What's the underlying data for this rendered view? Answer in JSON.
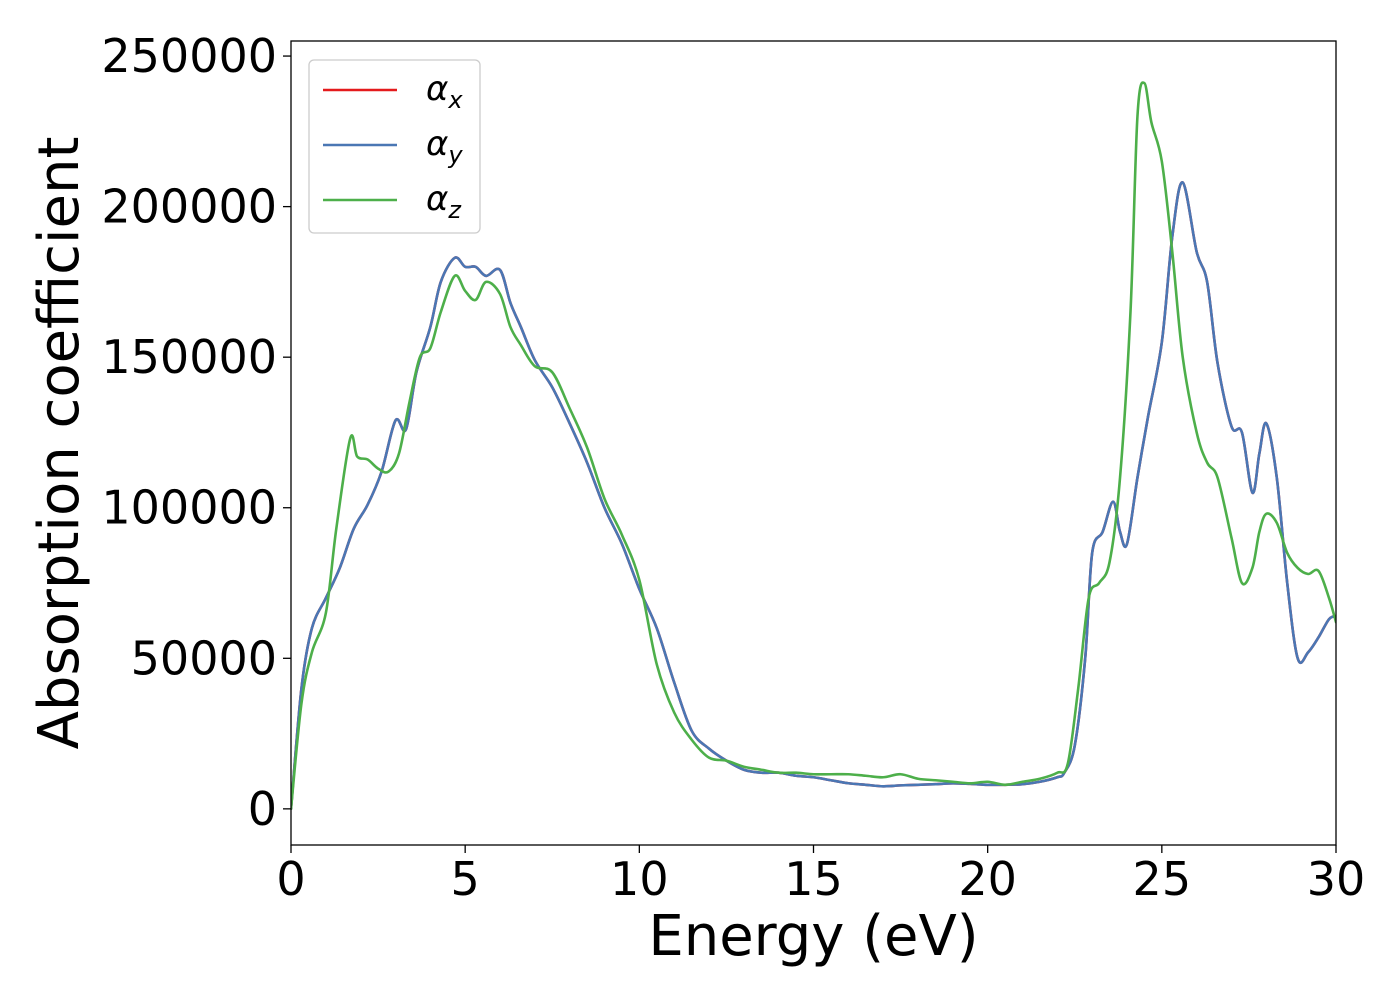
{
  "chart_data": {
    "type": "line",
    "xlabel": "Energy (eV)",
    "ylabel": "Absorption coefficient",
    "xlim": [
      0,
      30
    ],
    "ylim": [
      -12000,
      255000
    ],
    "xticks": [
      0,
      5,
      10,
      15,
      20,
      25,
      30
    ],
    "yticks": [
      0,
      50000,
      100000,
      150000,
      200000,
      250000
    ],
    "legend_position": "top-left",
    "grid": false,
    "series": [
      {
        "name": "α_x",
        "label_main": "α",
        "label_sub": "x",
        "color": "#e41a1c",
        "x": [
          0,
          0.3,
          0.6,
          1,
          1.4,
          1.8,
          2.2,
          2.6,
          3,
          3.3,
          3.6,
          4,
          4.3,
          4.7,
          5,
          5.3,
          5.6,
          6,
          6.3,
          6.6,
          7,
          7.5,
          8,
          8.5,
          9,
          9.5,
          10,
          10.5,
          11,
          11.5,
          12,
          12.5,
          13,
          13.5,
          14,
          14.5,
          15,
          15.5,
          16,
          16.5,
          17,
          17.5,
          18,
          18.5,
          19,
          19.5,
          20,
          20.5,
          21,
          21.5,
          22,
          22.2,
          22.5,
          22.8,
          23,
          23.3,
          23.6,
          23.8,
          24,
          24.3,
          24.6,
          25,
          25.3,
          25.6,
          26,
          26.3,
          26.6,
          27,
          27.3,
          27.6,
          27.8,
          28,
          28.3,
          28.6,
          28.9,
          29.2,
          29.5,
          29.8,
          30
        ],
        "y": [
          0,
          40000,
          60000,
          70000,
          80000,
          93000,
          101000,
          112000,
          129000,
          126000,
          145000,
          160000,
          175000,
          183000,
          180000,
          180000,
          177000,
          179000,
          168000,
          160000,
          149000,
          140000,
          128000,
          115000,
          100000,
          88000,
          73000,
          60000,
          42000,
          26000,
          20000,
          16000,
          13000,
          12000,
          12000,
          11000,
          10500,
          9500,
          8500,
          8000,
          7500,
          7800,
          8000,
          8200,
          8500,
          8300,
          8000,
          8000,
          8200,
          9000,
          10500,
          12000,
          21000,
          50000,
          85000,
          92000,
          102000,
          92000,
          88000,
          110000,
          130000,
          155000,
          190000,
          208000,
          185000,
          175000,
          148000,
          127000,
          125000,
          105000,
          118000,
          128000,
          110000,
          75000,
          50000,
          52000,
          57000,
          63000,
          64000
        ]
      },
      {
        "name": "α_y",
        "label_main": "α",
        "label_sub": "y",
        "color": "#4a77b4",
        "x": [
          0,
          0.3,
          0.6,
          1,
          1.4,
          1.8,
          2.2,
          2.6,
          3,
          3.3,
          3.6,
          4,
          4.3,
          4.7,
          5,
          5.3,
          5.6,
          6,
          6.3,
          6.6,
          7,
          7.5,
          8,
          8.5,
          9,
          9.5,
          10,
          10.5,
          11,
          11.5,
          12,
          12.5,
          13,
          13.5,
          14,
          14.5,
          15,
          15.5,
          16,
          16.5,
          17,
          17.5,
          18,
          18.5,
          19,
          19.5,
          20,
          20.5,
          21,
          21.5,
          22,
          22.2,
          22.5,
          22.8,
          23,
          23.3,
          23.6,
          23.8,
          24,
          24.3,
          24.6,
          25,
          25.3,
          25.6,
          26,
          26.3,
          26.6,
          27,
          27.3,
          27.6,
          27.8,
          28,
          28.3,
          28.6,
          28.9,
          29.2,
          29.5,
          29.8,
          30
        ],
        "y": [
          0,
          40000,
          60000,
          70000,
          80000,
          93000,
          101000,
          112000,
          129000,
          126000,
          145000,
          160000,
          175000,
          183000,
          180000,
          180000,
          177000,
          179000,
          168000,
          160000,
          149000,
          140000,
          128000,
          115000,
          100000,
          88000,
          73000,
          60000,
          42000,
          26000,
          20000,
          16000,
          13000,
          12000,
          12000,
          11000,
          10500,
          9500,
          8500,
          8000,
          7500,
          7800,
          8000,
          8200,
          8500,
          8300,
          8000,
          8000,
          8200,
          9000,
          10500,
          12000,
          21000,
          50000,
          85000,
          92000,
          102000,
          92000,
          88000,
          110000,
          130000,
          155000,
          190000,
          208000,
          185000,
          175000,
          148000,
          127000,
          125000,
          105000,
          118000,
          128000,
          110000,
          75000,
          50000,
          52000,
          57000,
          63000,
          64000
        ]
      },
      {
        "name": "α_z",
        "label_main": "α",
        "label_sub": "z",
        "color": "#4daf4a",
        "x": [
          0,
          0.3,
          0.6,
          1,
          1.3,
          1.7,
          1.9,
          2.2,
          2.5,
          2.8,
          3.1,
          3.4,
          3.7,
          4,
          4.3,
          4.7,
          5,
          5.3,
          5.6,
          6,
          6.3,
          6.6,
          7,
          7.5,
          8,
          8.5,
          9,
          9.5,
          10,
          10.5,
          11,
          11.5,
          12,
          12.5,
          13,
          13.5,
          14,
          14.5,
          15,
          15.5,
          16,
          16.5,
          17,
          17.5,
          18,
          18.5,
          19,
          19.5,
          20,
          20.5,
          21,
          21.5,
          22,
          22.3,
          22.6,
          22.9,
          23.2,
          23.5,
          23.8,
          24.1,
          24.3,
          24.5,
          24.7,
          25,
          25.3,
          25.6,
          26,
          26.3,
          26.6,
          27,
          27.3,
          27.6,
          27.8,
          28,
          28.3,
          28.6,
          28.9,
          29.2,
          29.5,
          29.8,
          30
        ],
        "y": [
          0,
          35000,
          52000,
          65000,
          93000,
          123000,
          117000,
          116000,
          113000,
          112000,
          118000,
          135000,
          150000,
          153000,
          165000,
          177000,
          172000,
          169000,
          175000,
          171000,
          160000,
          154000,
          147000,
          145000,
          133000,
          120000,
          103000,
          91000,
          76000,
          48000,
          32000,
          23000,
          17000,
          16000,
          14000,
          13000,
          12000,
          12000,
          11500,
          11500,
          11500,
          11000,
          10500,
          11500,
          10000,
          9500,
          9000,
          8500,
          9000,
          8000,
          9000,
          10000,
          12000,
          15000,
          40000,
          70000,
          75000,
          82000,
          110000,
          165000,
          230000,
          241000,
          228000,
          215000,
          185000,
          150000,
          125000,
          115000,
          110000,
          90000,
          75000,
          80000,
          92000,
          98000,
          95000,
          85000,
          80000,
          78000,
          79000,
          70000,
          62000
        ]
      }
    ]
  }
}
